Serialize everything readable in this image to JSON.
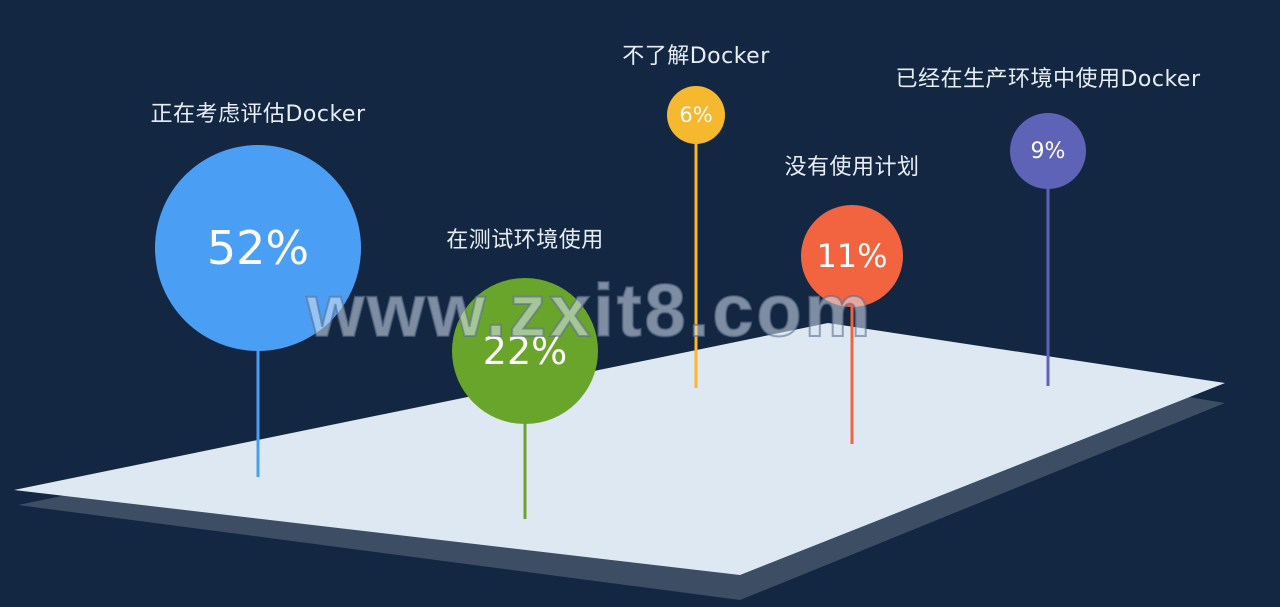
{
  "watermark": "www.zxit8.com",
  "chart_data": {
    "type": "bubble-pin",
    "title": "",
    "items": [
      {
        "label": "正在考虑评估Docker",
        "value": 52,
        "display": "52%",
        "color": "#4a9ff5"
      },
      {
        "label": "在测试环境使用",
        "value": 22,
        "display": "22%",
        "color": "#6aa52b"
      },
      {
        "label": "不了解Docker",
        "value": 6,
        "display": "6%",
        "color": "#f5b82e"
      },
      {
        "label": "没有使用计划",
        "value": 11,
        "display": "11%",
        "color": "#f26440"
      },
      {
        "label": "已经在生产环境中使用Docker",
        "value": 9,
        "display": "9%",
        "color": "#5f63b8"
      }
    ]
  }
}
